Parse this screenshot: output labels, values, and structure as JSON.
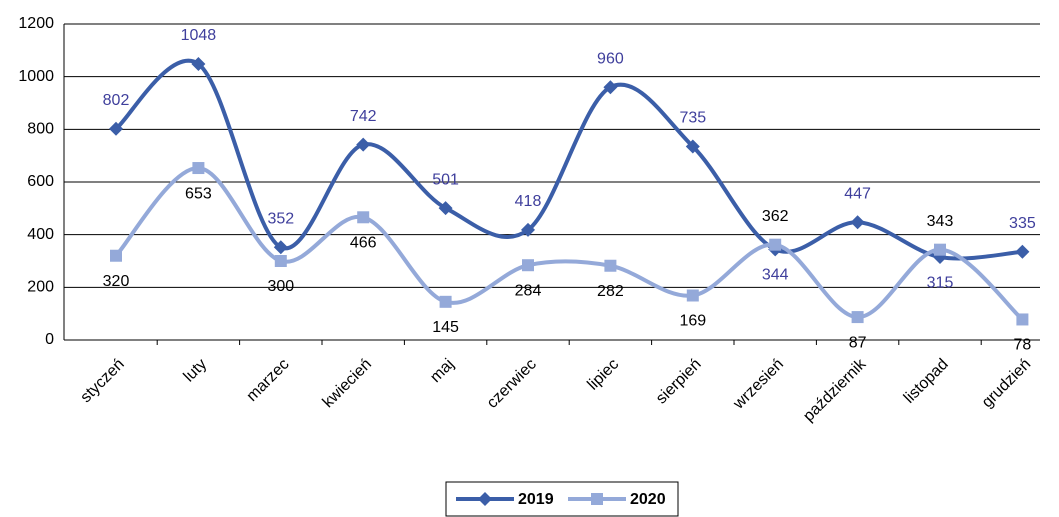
{
  "chart_data": {
    "type": "line",
    "smooth": true,
    "categories": [
      "styczeń",
      "luty",
      "marzec",
      "kwiecień",
      "maj",
      "czerwiec",
      "lipiec",
      "sierpień",
      "wrzesień",
      "październik",
      "listopad",
      "grudzień"
    ],
    "series": [
      {
        "name": "2019",
        "color": "#3b5ea8",
        "label_color": "#3f3f9c",
        "marker": "diamond",
        "values": [
          802,
          1048,
          352,
          742,
          501,
          418,
          960,
          735,
          344,
          447,
          315,
          335
        ]
      },
      {
        "name": "2020",
        "color": "#94a9d9",
        "label_color": "#000000",
        "marker": "square",
        "values": [
          320,
          653,
          300,
          466,
          145,
          284,
          282,
          169,
          362,
          87,
          343,
          78
        ]
      }
    ],
    "ylim": [
      0,
      1200
    ],
    "yticks": [
      0,
      200,
      400,
      600,
      800,
      1000,
      1200
    ],
    "grid": true,
    "legend": "bottom"
  }
}
